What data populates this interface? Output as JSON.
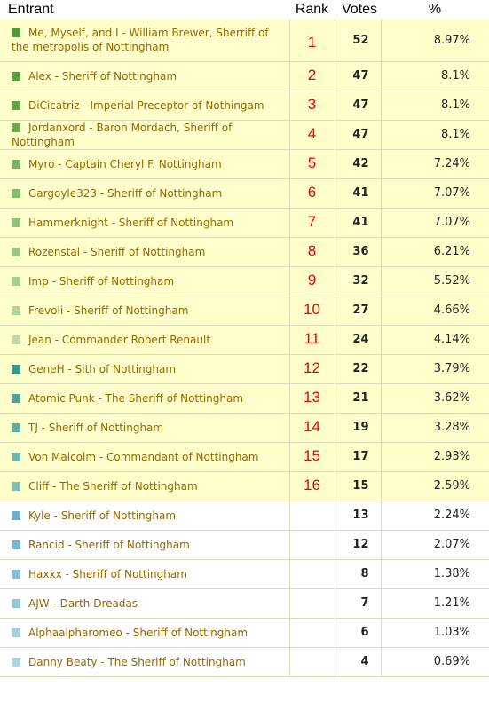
{
  "chart_data": {
    "type": "table",
    "columns": [
      "Entrant",
      "Rank",
      "Votes",
      "%"
    ],
    "rows": [
      {
        "entrant": "Me, Myself, and I - William Brewer, Sherriff of the metropolis of Nottingham",
        "rank": "1",
        "votes": 52,
        "pct": "8.97%",
        "color": "#4a9a3c",
        "highlight": true
      },
      {
        "entrant": "Alex - Sheriff of Nottingham",
        "rank": "2",
        "votes": 47,
        "pct": "8.1%",
        "color": "#5aa040",
        "highlight": true
      },
      {
        "entrant": "DiCicatriz - Imperial Preceptor of Nothingam",
        "rank": "3",
        "votes": 47,
        "pct": "8.1%",
        "color": "#62a448",
        "highlight": true
      },
      {
        "entrant": "Jordanxord - Baron Mordach, Sheriff of Nottingham",
        "rank": "4",
        "votes": 47,
        "pct": "8.1%",
        "color": "#6aaa50",
        "highlight": true
      },
      {
        "entrant": "Myro - Captain Cheryl F. Nottingham",
        "rank": "5",
        "votes": 42,
        "pct": "7.24%",
        "color": "#7ab462",
        "highlight": true
      },
      {
        "entrant": "Gargoyle323 - Sheriff of Nottingham",
        "rank": "6",
        "votes": 41,
        "pct": "7.07%",
        "color": "#86bc6e",
        "highlight": true
      },
      {
        "entrant": "Hammerknight - Sheriff of Nottingham",
        "rank": "7",
        "votes": 41,
        "pct": "7.07%",
        "color": "#90c278",
        "highlight": true
      },
      {
        "entrant": "Rozenstal - Sheriff of Nottingham",
        "rank": "8",
        "votes": 36,
        "pct": "6.21%",
        "color": "#9cc884",
        "highlight": true
      },
      {
        "entrant": "Imp - Sheriff of Nottingham",
        "rank": "9",
        "votes": 32,
        "pct": "5.52%",
        "color": "#a6ce8e",
        "highlight": true
      },
      {
        "entrant": "Frevoli - Sheriff of Nottingham",
        "rank": "10",
        "votes": 27,
        "pct": "4.66%",
        "color": "#b2d49a",
        "highlight": true
      },
      {
        "entrant": "Jean - Commander Robert Renault",
        "rank": "11",
        "votes": 24,
        "pct": "4.14%",
        "color": "#bedaa6",
        "highlight": true
      },
      {
        "entrant": "GeneH - Sith of Nottingham",
        "rank": "12",
        "votes": 22,
        "pct": "3.79%",
        "color": "#3a9a8a",
        "highlight": true
      },
      {
        "entrant": "Atomic Punk - The Sheriff of Nottingham",
        "rank": "13",
        "votes": 21,
        "pct": "3.62%",
        "color": "#4aa494",
        "highlight": true
      },
      {
        "entrant": "TJ - Sheriff of Nottingham",
        "rank": "14",
        "votes": 19,
        "pct": "3.28%",
        "color": "#5aae9e",
        "highlight": true
      },
      {
        "entrant": "Von Malcolm - Commandant of Nottingham",
        "rank": "15",
        "votes": 17,
        "pct": "2.93%",
        "color": "#6ab8a8",
        "highlight": true
      },
      {
        "entrant": "Cliff - The Sheriff of Nottingham",
        "rank": "16",
        "votes": 15,
        "pct": "2.59%",
        "color": "#7ec0b2",
        "highlight": true
      },
      {
        "entrant": "Kyle - Sheriff of Nottingham",
        "rank": "",
        "votes": 13,
        "pct": "2.24%",
        "color": "#6aaed0",
        "highlight": false
      },
      {
        "entrant": "Rancid - Sheriff of Nottingham",
        "rank": "",
        "votes": 12,
        "pct": "2.07%",
        "color": "#78b6d4",
        "highlight": false
      },
      {
        "entrant": "Haxxx - Sheriff of Nottingham",
        "rank": "",
        "votes": 8,
        "pct": "1.38%",
        "color": "#86bed8",
        "highlight": false
      },
      {
        "entrant": "AJW - Darth Dreadas",
        "rank": "",
        "votes": 7,
        "pct": "1.21%",
        "color": "#94c6dc",
        "highlight": false
      },
      {
        "entrant": "Alphaalpharomeo - Sheriff of Nottingham",
        "rank": "",
        "votes": 6,
        "pct": "1.03%",
        "color": "#a2cee0",
        "highlight": false
      },
      {
        "entrant": "Danny Beaty - The Sheriff of Nottingham",
        "rank": "",
        "votes": 4,
        "pct": "0.69%",
        "color": "#b0d6e4",
        "highlight": false
      }
    ]
  }
}
